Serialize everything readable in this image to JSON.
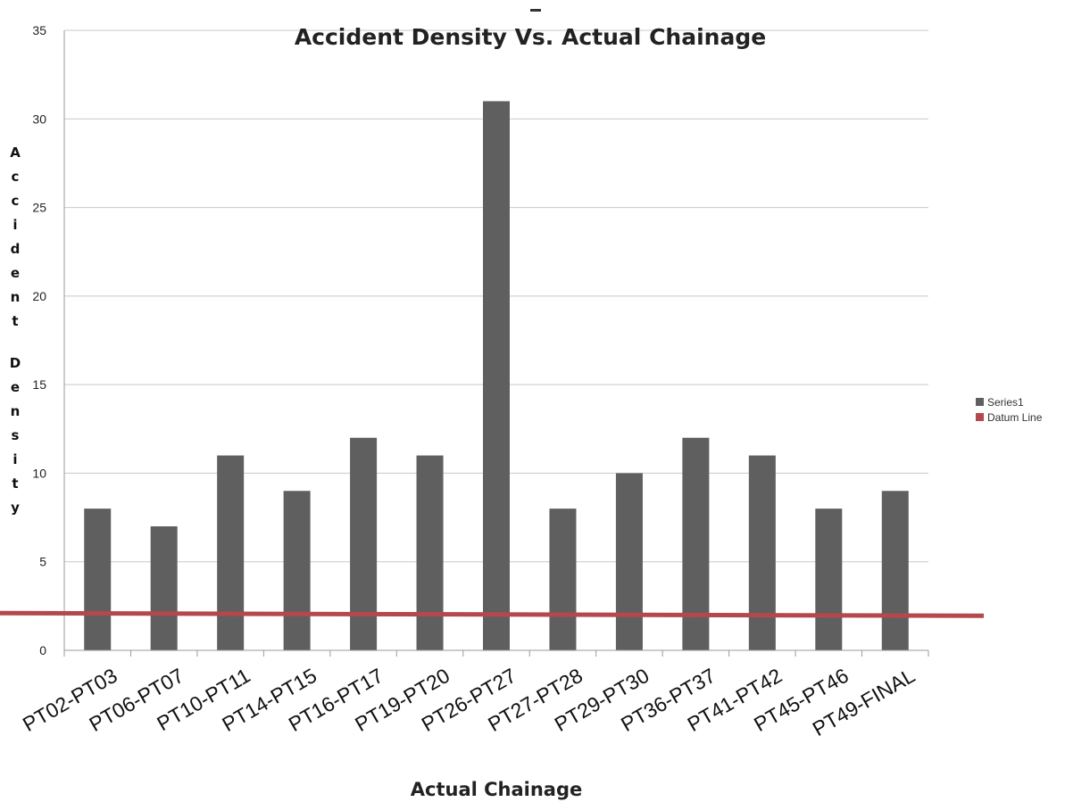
{
  "chart_data": {
    "type": "bar",
    "title": "Accident Density Vs. Actual Chainage",
    "xlabel": "Actual Chainage",
    "ylabel": "Accident Density",
    "ylim": [
      0,
      35
    ],
    "yticks": [
      "0",
      "5",
      "10",
      "15",
      "20",
      "25",
      "30",
      "35"
    ],
    "categories": [
      "PT02-PT03",
      "PT06-PT07",
      "PT10-PT11",
      "PT14-PT15",
      "PT16-PT17",
      "PT19-PT20",
      "PT26-PT27",
      "PT27-PT28",
      "PT29-PT30",
      "PT36-PT37",
      "PT41-PT42",
      "PT45-PT46",
      "PT49-FINAL"
    ],
    "series": [
      {
        "name": "Series1",
        "values": [
          8,
          7,
          11,
          9,
          12,
          11,
          31,
          8,
          10,
          12,
          11,
          8,
          9
        ],
        "color": "#5f5f5f"
      }
    ],
    "lines": [
      {
        "name": "Datum Line",
        "value": 2,
        "color": "#b5484c"
      }
    ],
    "grid": true,
    "legend": "right"
  }
}
